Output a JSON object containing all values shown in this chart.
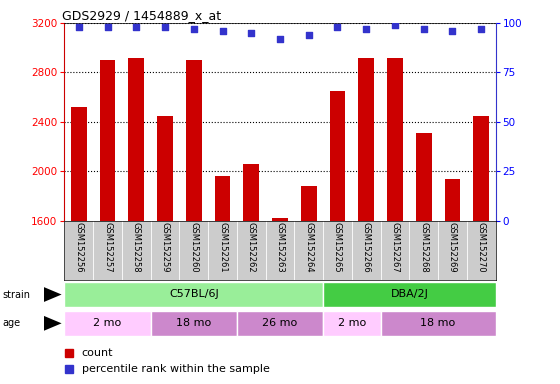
{
  "title": "GDS2929 / 1454889_x_at",
  "samples": [
    "GSM152256",
    "GSM152257",
    "GSM152258",
    "GSM152259",
    "GSM152260",
    "GSM152261",
    "GSM152262",
    "GSM152263",
    "GSM152264",
    "GSM152265",
    "GSM152266",
    "GSM152267",
    "GSM152268",
    "GSM152269",
    "GSM152270"
  ],
  "counts": [
    2520,
    2900,
    2920,
    2450,
    2900,
    1960,
    2060,
    1620,
    1880,
    2650,
    2920,
    2920,
    2310,
    1940,
    2450
  ],
  "percentile_ranks": [
    98,
    98,
    98,
    98,
    97,
    96,
    95,
    92,
    94,
    98,
    97,
    99,
    97,
    96,
    97
  ],
  "ylim_left": [
    1600,
    3200
  ],
  "ylim_right": [
    0,
    100
  ],
  "yticks_left": [
    1600,
    2000,
    2400,
    2800,
    3200
  ],
  "yticks_right": [
    0,
    25,
    50,
    75,
    100
  ],
  "bar_color": "#cc0000",
  "dot_color": "#3333cc",
  "strain_groups": [
    {
      "label": "C57BL/6J",
      "start": 0,
      "end": 8,
      "color": "#99ee99"
    },
    {
      "label": "DBA/2J",
      "start": 9,
      "end": 14,
      "color": "#44cc44"
    }
  ],
  "age_groups": [
    {
      "label": "2 mo",
      "start": 0,
      "end": 2,
      "color": "#ffccff"
    },
    {
      "label": "18 mo",
      "start": 3,
      "end": 5,
      "color": "#cc88cc"
    },
    {
      "label": "26 mo",
      "start": 6,
      "end": 8,
      "color": "#cc88cc"
    },
    {
      "label": "2 mo",
      "start": 9,
      "end": 10,
      "color": "#ffccff"
    },
    {
      "label": "18 mo",
      "start": 11,
      "end": 14,
      "color": "#cc88cc"
    }
  ],
  "background_color": "#ffffff",
  "plot_bg_color": "#ffffff",
  "label_bg_color": "#cccccc"
}
